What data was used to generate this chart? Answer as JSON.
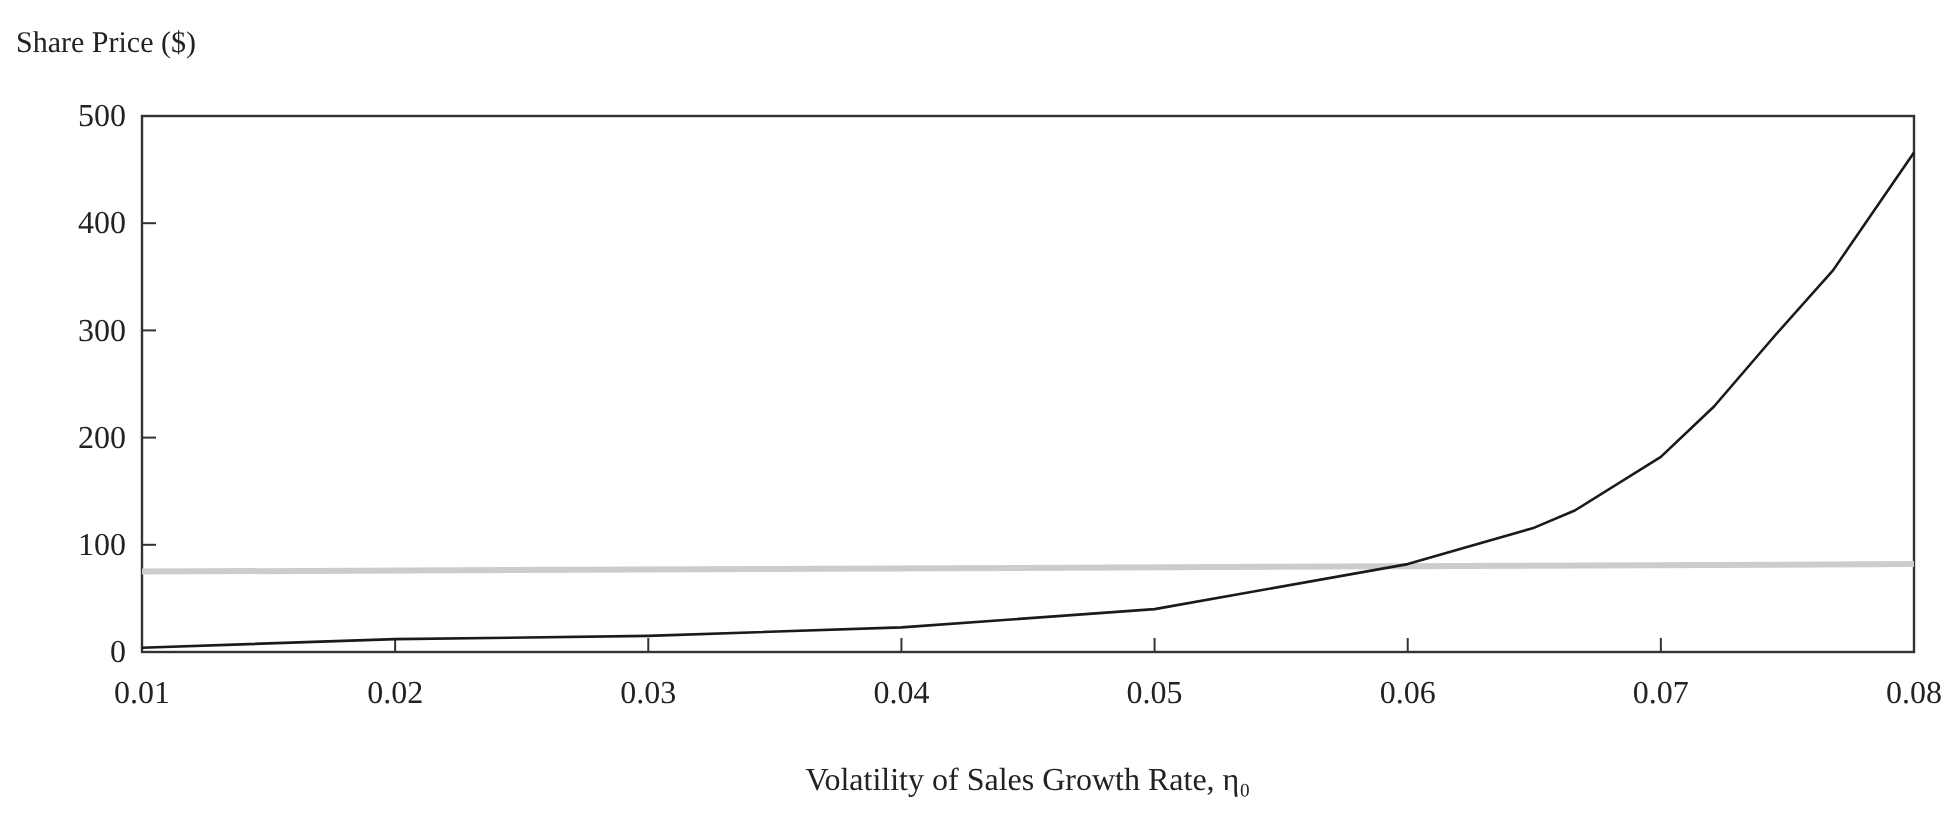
{
  "chart_data": {
    "type": "line",
    "ylabel": "Share Price ($)",
    "xlabel": "Volatility of Sales Growth Rate, η₀",
    "xlim": [
      0.01,
      0.08
    ],
    "xticks": [
      0.01,
      0.02,
      0.03,
      0.04,
      0.05,
      0.06,
      0.07,
      0.08
    ],
    "ylim": [
      0,
      500
    ],
    "yticks": [
      0,
      100,
      200,
      300,
      400,
      500
    ],
    "grid": false,
    "marker": "none",
    "line_style": "solid",
    "series": [
      {
        "color": "#cccccc",
        "x": [
          0.01,
          0.08
        ],
        "values": [
          75,
          82
        ]
      },
      {
        "color": "#1a1a1a",
        "x": [
          0.01,
          0.02,
          0.03,
          0.04,
          0.05,
          0.06,
          0.065,
          0.0666,
          0.07,
          0.0721,
          0.0745,
          0.0768,
          0.08
        ],
        "values": [
          4,
          12,
          15,
          23,
          40,
          82,
          116,
          132,
          182,
          229,
          295,
          356,
          466
        ]
      }
    ]
  }
}
